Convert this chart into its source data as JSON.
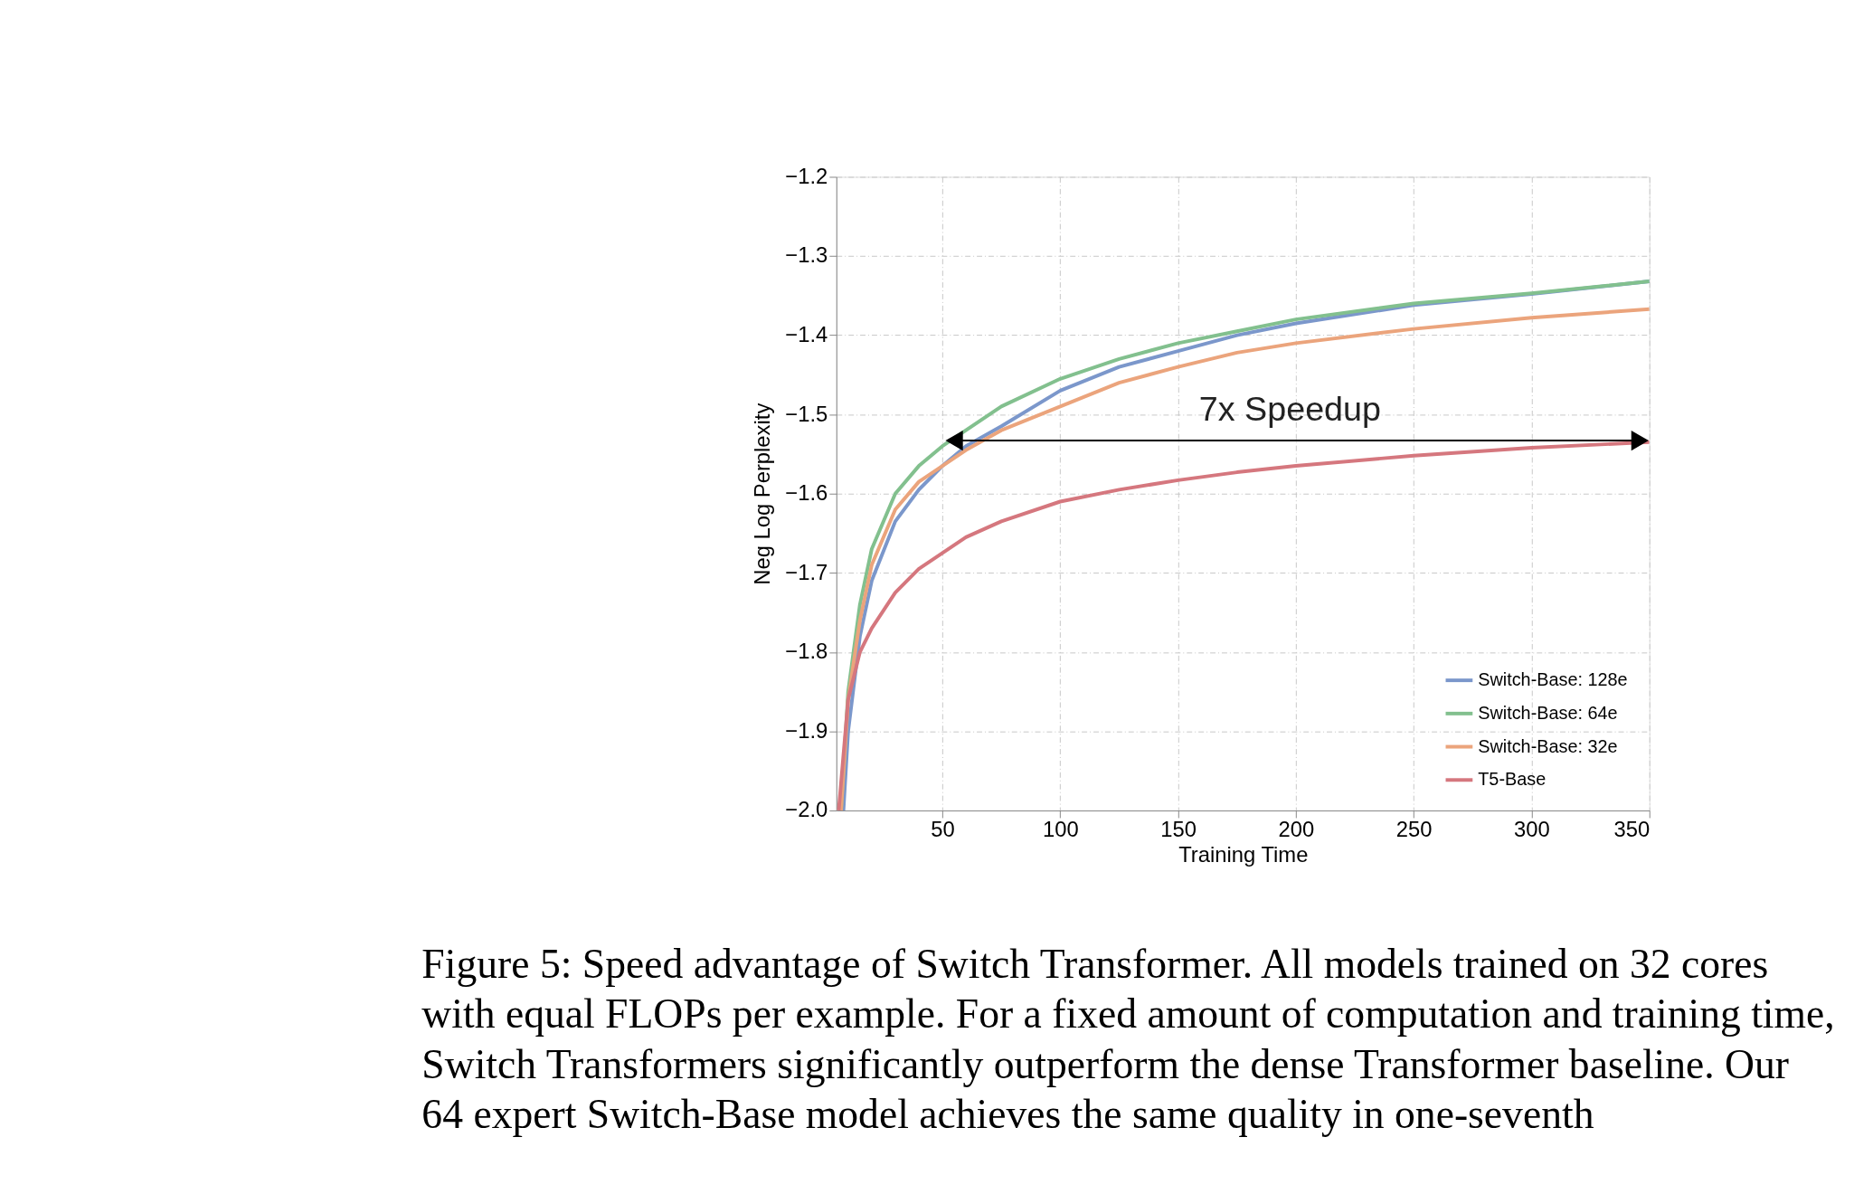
{
  "chart_data": {
    "type": "line",
    "xlabel": "Training Time",
    "ylabel": "Neg Log Perplexity",
    "xlim": [
      5,
      350
    ],
    "xticks": [
      50,
      100,
      150,
      200,
      250,
      300,
      350
    ],
    "ylim": [
      -2.0,
      -1.2
    ],
    "yticks": [
      {
        "value": -2.0,
        "label": "−2.0"
      },
      {
        "value": -1.9,
        "label": "−1.9"
      },
      {
        "value": -1.8,
        "label": "−1.8"
      },
      {
        "value": -1.7,
        "label": "−1.7"
      },
      {
        "value": -1.6,
        "label": "−1.6"
      },
      {
        "value": -1.5,
        "label": "−1.5"
      },
      {
        "value": -1.4,
        "label": "−1.4"
      },
      {
        "value": -1.3,
        "label": "−1.3"
      },
      {
        "value": -1.2,
        "label": "−1.2"
      }
    ],
    "grid": true,
    "legend": "bottom right",
    "line_style": "solid",
    "marker": "none",
    "x": [
      8,
      10,
      15,
      20,
      30,
      40,
      50,
      60,
      75,
      100,
      125,
      150,
      175,
      200,
      250,
      300,
      350
    ],
    "series": [
      {
        "name": "Switch-Base: 128e",
        "color": "#7b97cb",
        "values": [
          -2.0,
          -1.9,
          -1.78,
          -1.71,
          -1.635,
          -1.595,
          -1.565,
          -1.54,
          -1.515,
          -1.47,
          -1.44,
          -1.42,
          -1.4,
          -1.385,
          -1.362,
          -1.348,
          -1.332
        ]
      },
      {
        "name": "Switch-Base: 64e",
        "color": "#82c08e",
        "x": [
          7,
          10,
          15,
          20,
          30,
          40,
          50,
          60,
          75,
          100,
          125,
          150,
          175,
          200,
          250,
          300,
          350
        ],
        "values": [
          -2.0,
          -1.85,
          -1.74,
          -1.67,
          -1.6,
          -1.565,
          -1.54,
          -1.52,
          -1.49,
          -1.455,
          -1.43,
          -1.41,
          -1.395,
          -1.38,
          -1.36,
          -1.347,
          -1.332
        ]
      },
      {
        "name": "Switch-Base: 32e",
        "color": "#eba47c",
        "x": [
          7,
          10,
          15,
          20,
          30,
          40,
          50,
          60,
          75,
          100,
          125,
          150,
          175,
          200,
          250,
          300,
          350
        ],
        "values": [
          -2.0,
          -1.86,
          -1.76,
          -1.69,
          -1.62,
          -1.585,
          -1.565,
          -1.545,
          -1.52,
          -1.49,
          -1.46,
          -1.44,
          -1.422,
          -1.41,
          -1.392,
          -1.378,
          -1.367
        ]
      },
      {
        "name": "T5-Base",
        "color": "#d5777e",
        "x": [
          6,
          10,
          15,
          20,
          30,
          40,
          50,
          60,
          75,
          100,
          125,
          150,
          175,
          200,
          250,
          300,
          350
        ],
        "values": [
          -2.0,
          -1.86,
          -1.8,
          -1.77,
          -1.725,
          -1.695,
          -1.675,
          -1.655,
          -1.635,
          -1.61,
          -1.595,
          -1.583,
          -1.573,
          -1.565,
          -1.552,
          -1.542,
          -1.535
        ]
      },
      {
        "type": "line",
        "marker": "triangle",
        "color": "#000000",
        "x": [
          55,
          346
        ],
        "values": [
          -1.533,
          -1.533
        ]
      }
    ],
    "annotations": [
      "7x Speedup",
      "Figure 5: Speed advantage of Switch Transformer. All models trained on 32 cores with equal FLOPs per example. For a fixed amount of computation and training time, Switch Transformers significantly outperform the dense Transformer baseline. Our 64 expert Switch-Base model achieves the same quality in one-seventh"
    ]
  }
}
